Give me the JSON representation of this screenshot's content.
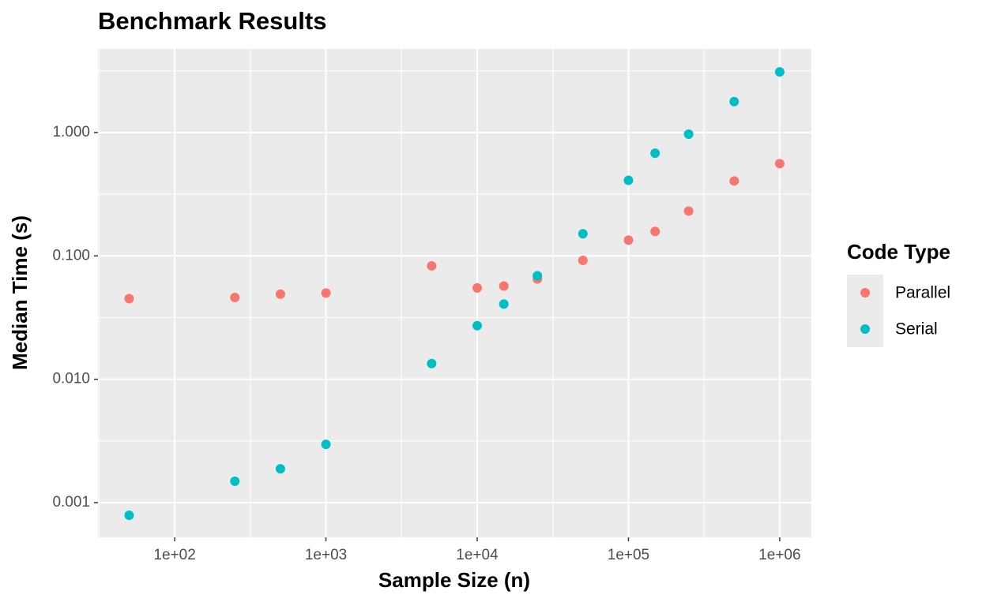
{
  "chart_data": {
    "type": "scatter",
    "title": "Benchmark Results",
    "x_label": "Sample Size (n)",
    "y_label": "Median Time (s)",
    "legend_title": "Code Type",
    "legend_position": "right",
    "x_log": true,
    "y_log": true,
    "grid": true,
    "minor_grid": true,
    "xlim": [
      31.1,
      1620000
    ],
    "ylim": [
      0.000523,
      4.76
    ],
    "xticks": [
      {
        "value": 100,
        "label": "1e+02"
      },
      {
        "value": 1000,
        "label": "1e+03"
      },
      {
        "value": 10000,
        "label": "1e+04"
      },
      {
        "value": 100000,
        "label": "1e+05"
      },
      {
        "value": 1000000,
        "label": "1e+06"
      }
    ],
    "yticks": [
      {
        "value": 0.001,
        "label": "0.001"
      },
      {
        "value": 0.01,
        "label": "0.010"
      },
      {
        "value": 0.1,
        "label": "0.100"
      },
      {
        "value": 1,
        "label": "1.000"
      }
    ],
    "series": [
      {
        "name": "Parallel",
        "color": "#F8766D",
        "x": [
          50,
          250,
          500,
          1000,
          5000,
          10000,
          15000,
          25000,
          50000,
          100000,
          150000,
          250000,
          500000,
          1000000
        ],
        "values": [
          0.045,
          0.046,
          0.049,
          0.05,
          0.083,
          0.055,
          0.057,
          0.065,
          0.092,
          0.134,
          0.158,
          0.231,
          0.405,
          0.56
        ]
      },
      {
        "name": "Serial",
        "color": "#00BFC4",
        "x": [
          50,
          250,
          500,
          1000,
          5000,
          10000,
          15000,
          25000,
          50000,
          100000,
          150000,
          250000,
          500000,
          1000000
        ],
        "values": [
          0.00079,
          0.00149,
          0.00188,
          0.00297,
          0.0134,
          0.0272,
          0.0407,
          0.069,
          0.151,
          0.41,
          0.68,
          0.97,
          1.78,
          3.1
        ]
      }
    ]
  }
}
